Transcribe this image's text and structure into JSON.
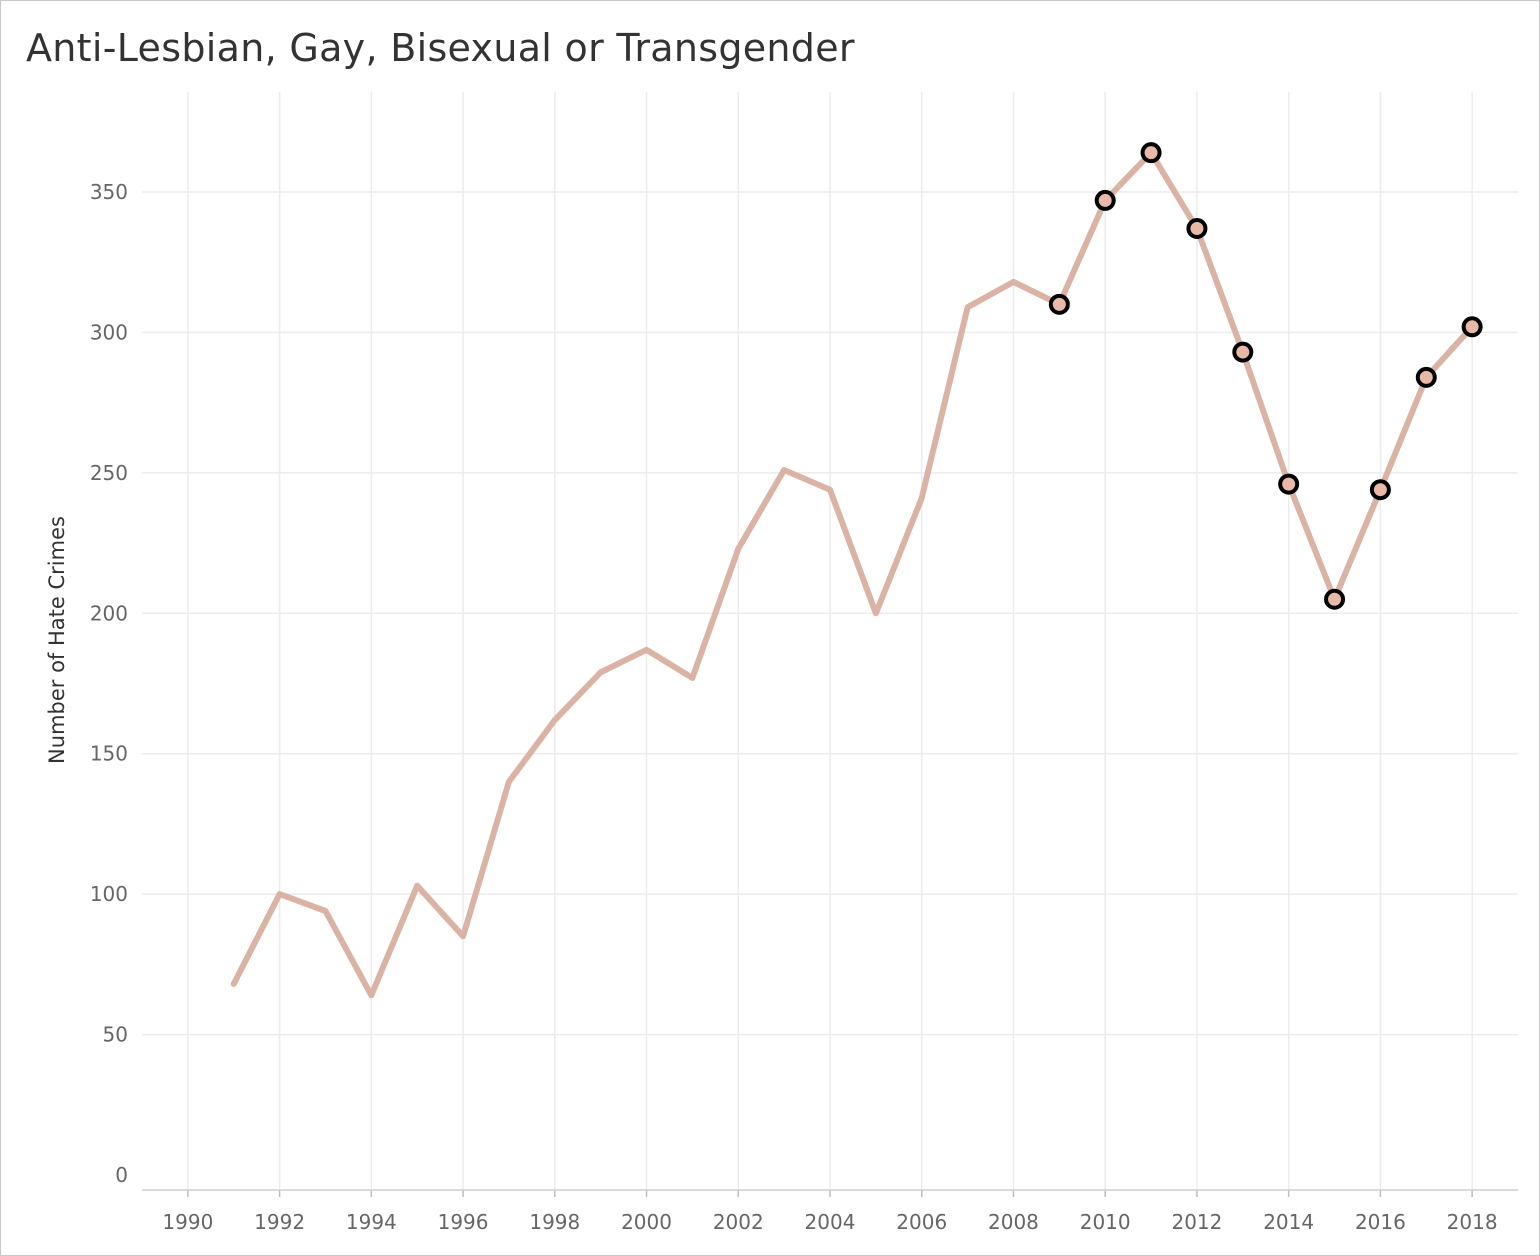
{
  "chart_data": {
    "type": "line",
    "title": "Anti-Lesbian, Gay, Bisexual or Transgender",
    "xlabel": "",
    "ylabel": "Number of Hate Crimes",
    "xlim": [
      1989,
      2019
    ],
    "ylim": [
      0,
      370
    ],
    "x_ticks": [
      1990,
      1992,
      1994,
      1996,
      1998,
      2000,
      2002,
      2004,
      2006,
      2008,
      2010,
      2012,
      2014,
      2016,
      2018
    ],
    "y_ticks": [
      0,
      50,
      100,
      150,
      200,
      250,
      300,
      350
    ],
    "grid": true,
    "line_color": "#dbb3a4",
    "marker_fill": "#e7b9a6",
    "marker_edge": "#000000",
    "series": [
      {
        "x": [
          1991,
          1992,
          1993,
          1994,
          1995,
          1996,
          1997,
          1998,
          1999,
          2000,
          2001,
          2002,
          2003,
          2004,
          2005,
          2006,
          2007,
          2008,
          2009,
          2010,
          2011,
          2012,
          2013,
          2014,
          2015,
          2016,
          2017,
          2018
        ],
        "values": [
          68,
          100,
          94,
          64,
          103,
          85,
          140,
          162,
          179,
          187,
          177,
          223,
          251,
          244,
          200,
          241,
          309,
          318,
          310,
          347,
          364,
          337,
          293,
          246,
          205,
          244,
          284,
          302
        ],
        "marked_from": 2009
      }
    ]
  }
}
